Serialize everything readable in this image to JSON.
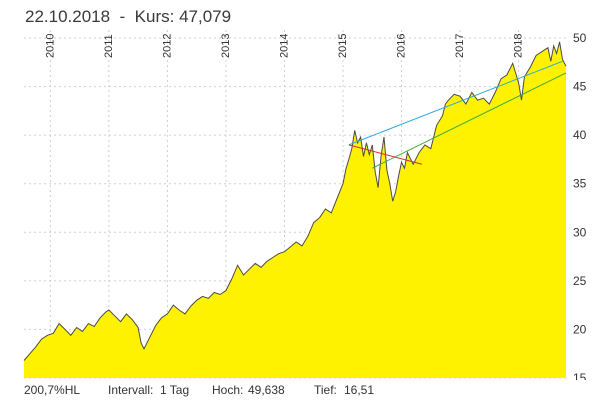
{
  "header": {
    "date": "22.10.2018",
    "sep": "-",
    "kurs_label": "Kurs:",
    "kurs_value": "47,079"
  },
  "footer": {
    "scale": "200,7%HL",
    "interval_label": "Intervall:",
    "interval_value": "1 Tag",
    "high_label": "Hoch:",
    "high_value": "49,638",
    "low_label": "Tief:",
    "low_value": "16,51"
  },
  "colors": {
    "area_fill": "#fff200",
    "price_line": "#4a4a4a",
    "trend_blue": "#2aa6e0",
    "trend_green": "#3aaa3a",
    "trend_red": "#d03030",
    "grid": "#cfcfcf"
  },
  "chart_data": {
    "type": "area",
    "title": "",
    "xlabel": "",
    "ylabel": "",
    "y_axis_position": "right",
    "xlim": [
      2009.55,
      2018.81
    ],
    "ylim": [
      15,
      50
    ],
    "grid": true,
    "y_ticks": [
      15,
      20,
      25,
      30,
      35,
      40,
      45,
      50
    ],
    "y_tick_labels": [
      "15",
      "20",
      "25",
      "30",
      "35",
      "40",
      "45",
      "50"
    ],
    "x_tick_labels": [
      "2010",
      "2011",
      "2012",
      "2013",
      "2014",
      "2015",
      "2016",
      "2017",
      "2018"
    ],
    "x_ticks": [
      2010,
      2011,
      2012,
      2013,
      2014,
      2015,
      2016,
      2017,
      2018
    ],
    "series": [
      {
        "x": [
          2009.55,
          2009.65,
          2009.75,
          2009.85,
          2009.95,
          2010.05,
          2010.15,
          2010.25,
          2010.35,
          2010.45,
          2010.55,
          2010.65,
          2010.75,
          2010.85,
          2010.95,
          2011.0,
          2011.1,
          2011.2,
          2011.3,
          2011.4,
          2011.5,
          2011.55,
          2011.6,
          2011.7,
          2011.8,
          2011.9,
          2012.0,
          2012.1,
          2012.2,
          2012.3,
          2012.4,
          2012.5,
          2012.6,
          2012.7,
          2012.8,
          2012.9,
          2013.0,
          2013.1,
          2013.2,
          2013.3,
          2013.4,
          2013.5,
          2013.6,
          2013.7,
          2013.8,
          2013.9,
          2014.0,
          2014.1,
          2014.2,
          2014.3,
          2014.4,
          2014.5,
          2014.6,
          2014.7,
          2014.8,
          2014.9,
          2015.0,
          2015.05,
          2015.1,
          2015.15,
          2015.2,
          2015.25,
          2015.3,
          2015.35,
          2015.4,
          2015.45,
          2015.5,
          2015.55,
          2015.6,
          2015.65,
          2015.7,
          2015.75,
          2015.8,
          2015.85,
          2015.9,
          2015.95,
          2016.0,
          2016.05,
          2016.1,
          2016.2,
          2016.3,
          2016.4,
          2016.5,
          2016.6,
          2016.7,
          2016.75,
          2016.8,
          2016.9,
          2017.0,
          2017.1,
          2017.2,
          2017.3,
          2017.4,
          2017.5,
          2017.6,
          2017.7,
          2017.8,
          2017.9,
          2018.0,
          2018.05,
          2018.1,
          2018.2,
          2018.3,
          2018.4,
          2018.5,
          2018.55,
          2018.6,
          2018.65,
          2018.7,
          2018.75,
          2018.81
        ],
        "y": [
          16.8,
          17.5,
          18.2,
          19.0,
          19.4,
          19.6,
          20.6,
          20.0,
          19.4,
          20.2,
          19.8,
          20.6,
          20.3,
          21.2,
          21.8,
          22.0,
          21.4,
          20.8,
          21.6,
          21.0,
          20.2,
          18.6,
          18.0,
          19.2,
          20.4,
          21.2,
          21.6,
          22.5,
          22.0,
          21.6,
          22.4,
          23.0,
          23.4,
          23.2,
          23.8,
          23.6,
          24.0,
          25.2,
          26.6,
          25.6,
          26.2,
          26.8,
          26.4,
          27.0,
          27.4,
          27.8,
          28.0,
          28.5,
          29.0,
          28.6,
          29.6,
          31.0,
          31.5,
          32.4,
          32.0,
          33.5,
          35.0,
          36.5,
          37.5,
          38.6,
          40.5,
          39.2,
          39.8,
          37.8,
          39.2,
          38.0,
          39.0,
          36.2,
          34.6,
          37.8,
          39.8,
          36.4,
          35.0,
          33.2,
          34.2,
          35.8,
          37.2,
          36.6,
          38.2,
          37.0,
          38.2,
          39.0,
          38.6,
          41.0,
          42.0,
          43.2,
          43.6,
          44.2,
          44.0,
          43.2,
          44.4,
          43.6,
          43.8,
          43.2,
          44.4,
          45.8,
          46.2,
          47.4,
          45.4,
          43.6,
          46.0,
          47.0,
          48.2,
          48.6,
          49.0,
          47.6,
          49.2,
          48.4,
          49.6,
          47.8,
          47.1
        ]
      }
    ],
    "trend_lines": [
      {
        "color": "blue",
        "x": [
          2015.1,
          2018.75
        ],
        "y": [
          39.0,
          47.6
        ]
      },
      {
        "color": "green",
        "x": [
          2015.5,
          2018.81
        ],
        "y": [
          36.6,
          46.4
        ]
      },
      {
        "color": "red",
        "x": [
          2015.1,
          2016.35
        ],
        "y": [
          39.0,
          37.0
        ]
      }
    ]
  }
}
